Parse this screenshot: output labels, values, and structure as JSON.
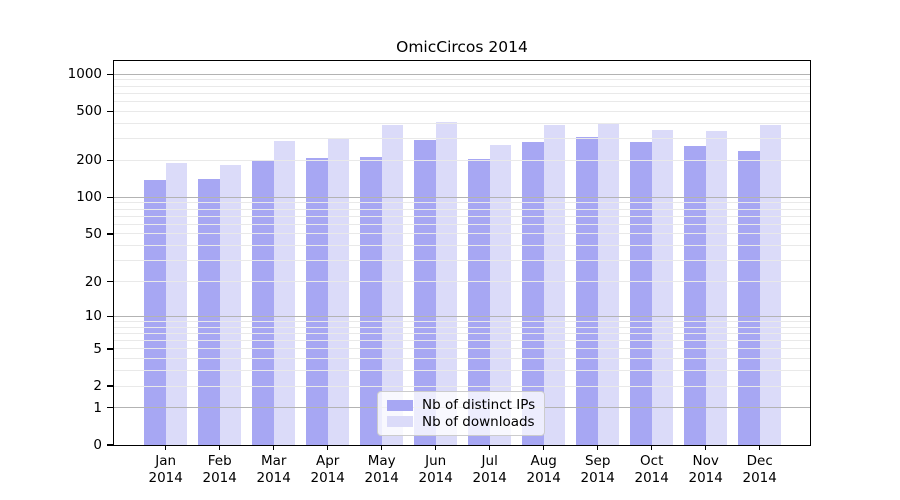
{
  "title": "OmicCircos 2014",
  "chart_data": {
    "type": "bar",
    "title": "OmicCircos 2014",
    "categories": [
      "Jan 2014",
      "Feb 2014",
      "Mar 2014",
      "Apr 2014",
      "May 2014",
      "Jun 2014",
      "Jul 2014",
      "Aug 2014",
      "Sep 2014",
      "Oct 2014",
      "Nov 2014",
      "Dec 2014"
    ],
    "months": [
      "Jan",
      "Feb",
      "Mar",
      "Apr",
      "May",
      "Jun",
      "Jul",
      "Aug",
      "Sep",
      "Oct",
      "Nov",
      "Dec"
    ],
    "year": "2014",
    "series": [
      {
        "name": "Nb of distinct IPs",
        "color": "#a7a7f3",
        "values": [
          138,
          140,
          198,
          209,
          215,
          295,
          207,
          284,
          307,
          281,
          262,
          237
        ]
      },
      {
        "name": "Nb of downloads",
        "color": "#dbdbf9",
        "values": [
          192,
          185,
          286,
          301,
          391,
          411,
          269,
          390,
          403,
          355,
          347,
          388
        ]
      }
    ],
    "xlabel": "",
    "ylabel": "",
    "yscale": "log1p",
    "yticks": [
      0,
      1,
      2,
      5,
      10,
      20,
      50,
      100,
      200,
      500,
      1000
    ],
    "ylim": [
      0,
      1280
    ],
    "grid": "both",
    "grid_major_color": "#b3b3b3",
    "grid_minor_color": "#e9e9e9",
    "legend_position": "lower center"
  },
  "legend": {
    "items": [
      {
        "label": "Nb of distinct IPs",
        "color": "#a7a7f3"
      },
      {
        "label": "Nb of downloads",
        "color": "#dbdbf9"
      }
    ]
  }
}
